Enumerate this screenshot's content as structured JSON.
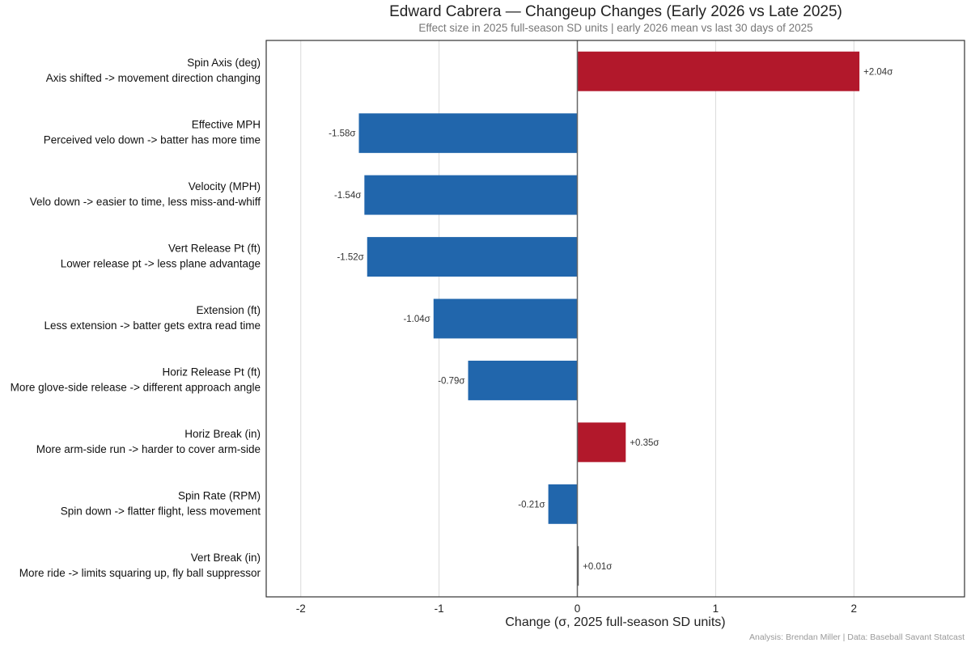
{
  "chart_data": {
    "type": "bar",
    "orientation": "horizontal",
    "title": "Edward Cabrera — Changeup Changes (Early 2026 vs Late 2025)",
    "subtitle": "Effect size in 2025 full-season SD units  |  early 2026 mean vs last 30 days of 2025",
    "xlabel": "Change (σ, 2025 full-season SD units)",
    "ylabel": "",
    "xlim": [
      -2.25,
      2.8
    ],
    "xticks": [
      -2,
      -1,
      0,
      1,
      2
    ],
    "grid": "vertical",
    "legend": "none",
    "colors": {
      "positive": "#b2182b",
      "negative": "#2166ac",
      "zero_line": "#666666",
      "grid": "#d9d9d9"
    },
    "categories": [
      {
        "metric": "Spin Axis (deg)",
        "note": "Axis shifted -> movement direction changing",
        "value": 2.04,
        "label": "+2.04σ"
      },
      {
        "metric": "Effective MPH",
        "note": "Perceived velo down -> batter has more time",
        "value": -1.58,
        "label": "-1.58σ"
      },
      {
        "metric": "Velocity (MPH)",
        "note": "Velo down -> easier to time, less miss-and-whiff",
        "value": -1.54,
        "label": "-1.54σ"
      },
      {
        "metric": "Vert Release Pt (ft)",
        "note": "Lower release pt -> less plane advantage",
        "value": -1.52,
        "label": "-1.52σ"
      },
      {
        "metric": "Extension (ft)",
        "note": "Less extension -> batter gets extra read time",
        "value": -1.04,
        "label": "-1.04σ"
      },
      {
        "metric": "Horiz Release Pt (ft)",
        "note": "More glove-side release -> different approach angle",
        "value": -0.79,
        "label": "-0.79σ"
      },
      {
        "metric": "Horiz Break (in)",
        "note": "More arm-side run -> harder to cover arm-side",
        "value": 0.35,
        "label": "+0.35σ"
      },
      {
        "metric": "Spin Rate (RPM)",
        "note": "Spin down -> flatter flight, less movement",
        "value": -0.21,
        "label": "-0.21σ"
      },
      {
        "metric": "Vert Break (in)",
        "note": "More ride -> limits squaring up, fly ball suppressor",
        "value": 0.01,
        "label": "+0.01σ"
      }
    ]
  },
  "footer": "Analysis: Brendan Miller | Data: Baseball Savant Statcast"
}
